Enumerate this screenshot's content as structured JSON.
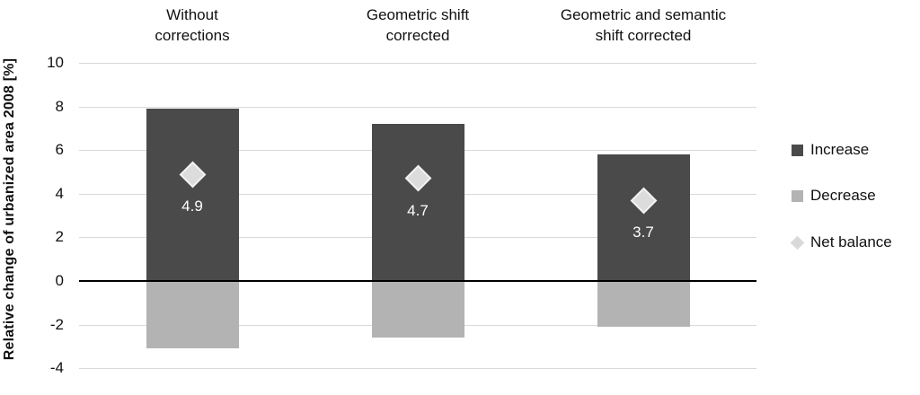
{
  "chart_data": {
    "type": "bar",
    "ylabel": "Relative change of urbanized area 2008 [%]",
    "categories": [
      "Without\ncorrections",
      "Geometric shift\ncorrected",
      "Geometric and semantic\nshift corrected"
    ],
    "series": [
      {
        "name": "Increase",
        "type": "bar",
        "color": "#4a4a4a",
        "values": [
          7.9,
          7.2,
          5.8
        ]
      },
      {
        "name": "Decrease",
        "type": "bar",
        "color": "#b3b3b3",
        "values": [
          -3.1,
          -2.6,
          -2.1
        ]
      },
      {
        "name": "Net balance",
        "type": "scatter",
        "marker": "diamond",
        "color": "#dcdcdc",
        "values": [
          4.9,
          4.7,
          3.7
        ],
        "labels": [
          "4.9",
          "4.7",
          "3.7"
        ]
      }
    ],
    "yticks": [
      10,
      8,
      6,
      4,
      2,
      0,
      -2,
      -4
    ],
    "ylim": [
      -4,
      10
    ],
    "grid": "horizontal",
    "legend_position": "right",
    "legend": [
      {
        "label": "Increase",
        "swatch": "square",
        "color": "#4a4a4a"
      },
      {
        "label": "Decrease",
        "swatch": "square",
        "color": "#b3b3b3"
      },
      {
        "label": "Net balance",
        "swatch": "diamond",
        "color": "#d9d9d9"
      }
    ],
    "colors": {
      "gridline": "#d9d9d9",
      "zero_line": "#000000",
      "data_label": "#ffffff",
      "background": "#ffffff"
    }
  }
}
